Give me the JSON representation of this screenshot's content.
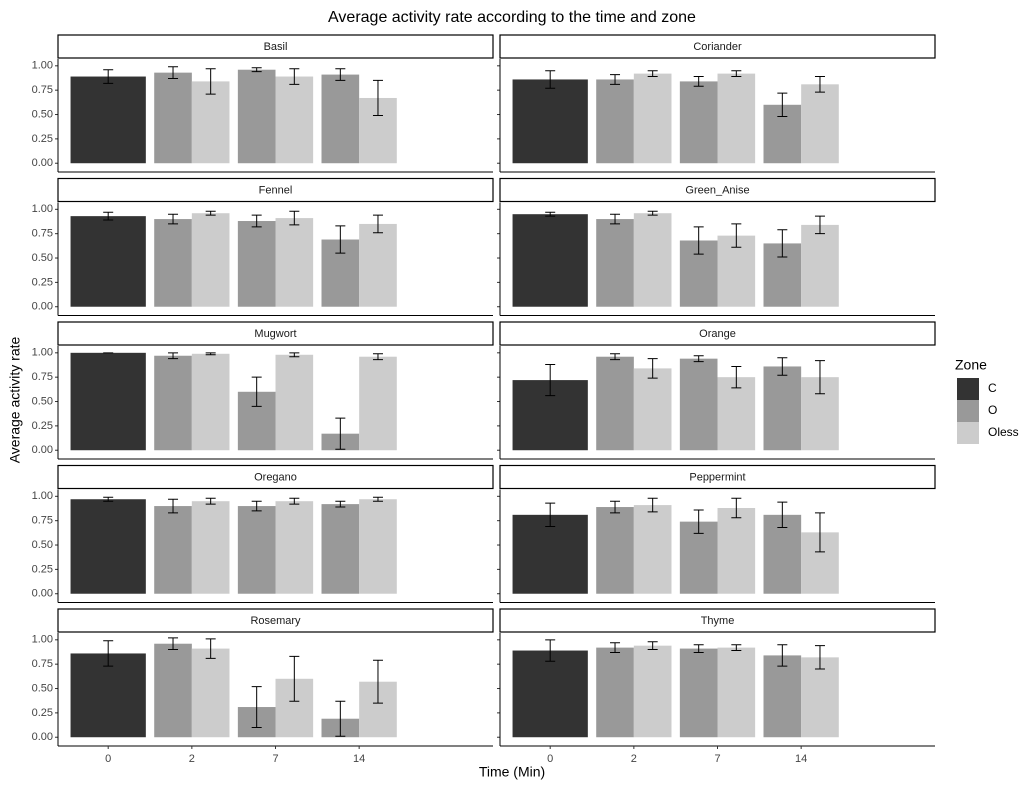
{
  "chart_data": {
    "type": "bar",
    "title": "Average activity rate according to the time and zone",
    "xlabel": "Time (Min)",
    "ylabel": "Average activity rate",
    "legend_title": "Zone",
    "categories": [
      "0",
      "2",
      "7",
      "14"
    ],
    "ylim": [
      -0.09,
      1.07
    ],
    "yticks": [
      {
        "value": 0,
        "label": "0.00"
      },
      {
        "value": 0.25,
        "label": "0.25"
      },
      {
        "value": 0.5,
        "label": "0.50"
      },
      {
        "value": 0.75,
        "label": "0.75"
      },
      {
        "value": 1,
        "label": "1.00"
      }
    ],
    "series": [
      {
        "name": "C",
        "color": "#333333"
      },
      {
        "name": "O",
        "color": "#999999"
      },
      {
        "name": "Oless",
        "color": "#cccccc"
      }
    ],
    "panels": [
      {
        "title": "Basil",
        "values": [
          [
            0.89,
            null,
            null,
            null
          ],
          [
            null,
            0.93,
            0.96,
            0.91
          ],
          [
            null,
            0.84,
            0.89,
            0.67
          ]
        ],
        "errors": [
          [
            0.07,
            null,
            null,
            null
          ],
          [
            null,
            0.06,
            0.02,
            0.06
          ],
          [
            null,
            0.13,
            0.08,
            0.18
          ]
        ]
      },
      {
        "title": "Coriander",
        "values": [
          [
            0.86,
            null,
            null,
            null
          ],
          [
            null,
            0.86,
            0.84,
            0.6
          ],
          [
            null,
            0.92,
            0.92,
            0.81
          ]
        ],
        "errors": [
          [
            0.09,
            null,
            null,
            null
          ],
          [
            null,
            0.05,
            0.05,
            0.12
          ],
          [
            null,
            0.03,
            0.03,
            0.08
          ]
        ]
      },
      {
        "title": "Fennel",
        "values": [
          [
            0.93,
            null,
            null,
            null
          ],
          [
            null,
            0.9,
            0.88,
            0.69
          ],
          [
            null,
            0.96,
            0.91,
            0.85
          ]
        ],
        "errors": [
          [
            0.04,
            null,
            null,
            null
          ],
          [
            null,
            0.05,
            0.06,
            0.14
          ],
          [
            null,
            0.02,
            0.07,
            0.09
          ]
        ]
      },
      {
        "title": "Green_Anise",
        "values": [
          [
            0.95,
            null,
            null,
            null
          ],
          [
            null,
            0.9,
            0.68,
            0.65
          ],
          [
            null,
            0.96,
            0.73,
            0.84
          ]
        ],
        "errors": [
          [
            0.02,
            null,
            null,
            null
          ],
          [
            null,
            0.05,
            0.14,
            0.14
          ],
          [
            null,
            0.02,
            0.12,
            0.09
          ]
        ]
      },
      {
        "title": "Mugwort",
        "values": [
          [
            1.0,
            null,
            null,
            null
          ],
          [
            null,
            0.97,
            0.6,
            0.17
          ],
          [
            null,
            0.99,
            0.98,
            0.96
          ]
        ],
        "errors": [
          [
            0.0,
            null,
            null,
            null
          ],
          [
            null,
            0.03,
            0.15,
            0.16
          ],
          [
            null,
            0.01,
            0.02,
            0.03
          ]
        ]
      },
      {
        "title": "Orange",
        "values": [
          [
            0.72,
            null,
            null,
            null
          ],
          [
            null,
            0.96,
            0.94,
            0.86
          ],
          [
            null,
            0.84,
            0.75,
            0.75
          ]
        ],
        "errors": [
          [
            0.16,
            null,
            null,
            null
          ],
          [
            null,
            0.03,
            0.03,
            0.09
          ],
          [
            null,
            0.1,
            0.11,
            0.17
          ]
        ]
      },
      {
        "title": "Oregano",
        "values": [
          [
            0.97,
            null,
            null,
            null
          ],
          [
            null,
            0.9,
            0.9,
            0.92
          ],
          [
            null,
            0.95,
            0.95,
            0.97
          ]
        ],
        "errors": [
          [
            0.02,
            null,
            null,
            null
          ],
          [
            null,
            0.07,
            0.05,
            0.03
          ],
          [
            null,
            0.03,
            0.03,
            0.02
          ]
        ]
      },
      {
        "title": "Peppermint",
        "values": [
          [
            0.81,
            null,
            null,
            null
          ],
          [
            null,
            0.89,
            0.74,
            0.81
          ],
          [
            null,
            0.91,
            0.88,
            0.63
          ]
        ],
        "errors": [
          [
            0.12,
            null,
            null,
            null
          ],
          [
            null,
            0.06,
            0.12,
            0.13
          ],
          [
            null,
            0.07,
            0.1,
            0.2
          ]
        ]
      },
      {
        "title": "Rosemary",
        "values": [
          [
            0.86,
            null,
            null,
            null
          ],
          [
            null,
            0.96,
            0.31,
            0.19
          ],
          [
            null,
            0.91,
            0.6,
            0.57
          ]
        ],
        "errors": [
          [
            0.13,
            null,
            null,
            null
          ],
          [
            null,
            0.06,
            0.21,
            0.18
          ],
          [
            null,
            0.1,
            0.23,
            0.22
          ]
        ]
      },
      {
        "title": "Thyme",
        "values": [
          [
            0.89,
            null,
            null,
            null
          ],
          [
            null,
            0.92,
            0.91,
            0.84
          ],
          [
            null,
            0.94,
            0.92,
            0.82
          ]
        ],
        "errors": [
          [
            0.11,
            null,
            null,
            null
          ],
          [
            null,
            0.05,
            0.04,
            0.11
          ],
          [
            null,
            0.04,
            0.03,
            0.12
          ]
        ]
      }
    ]
  }
}
